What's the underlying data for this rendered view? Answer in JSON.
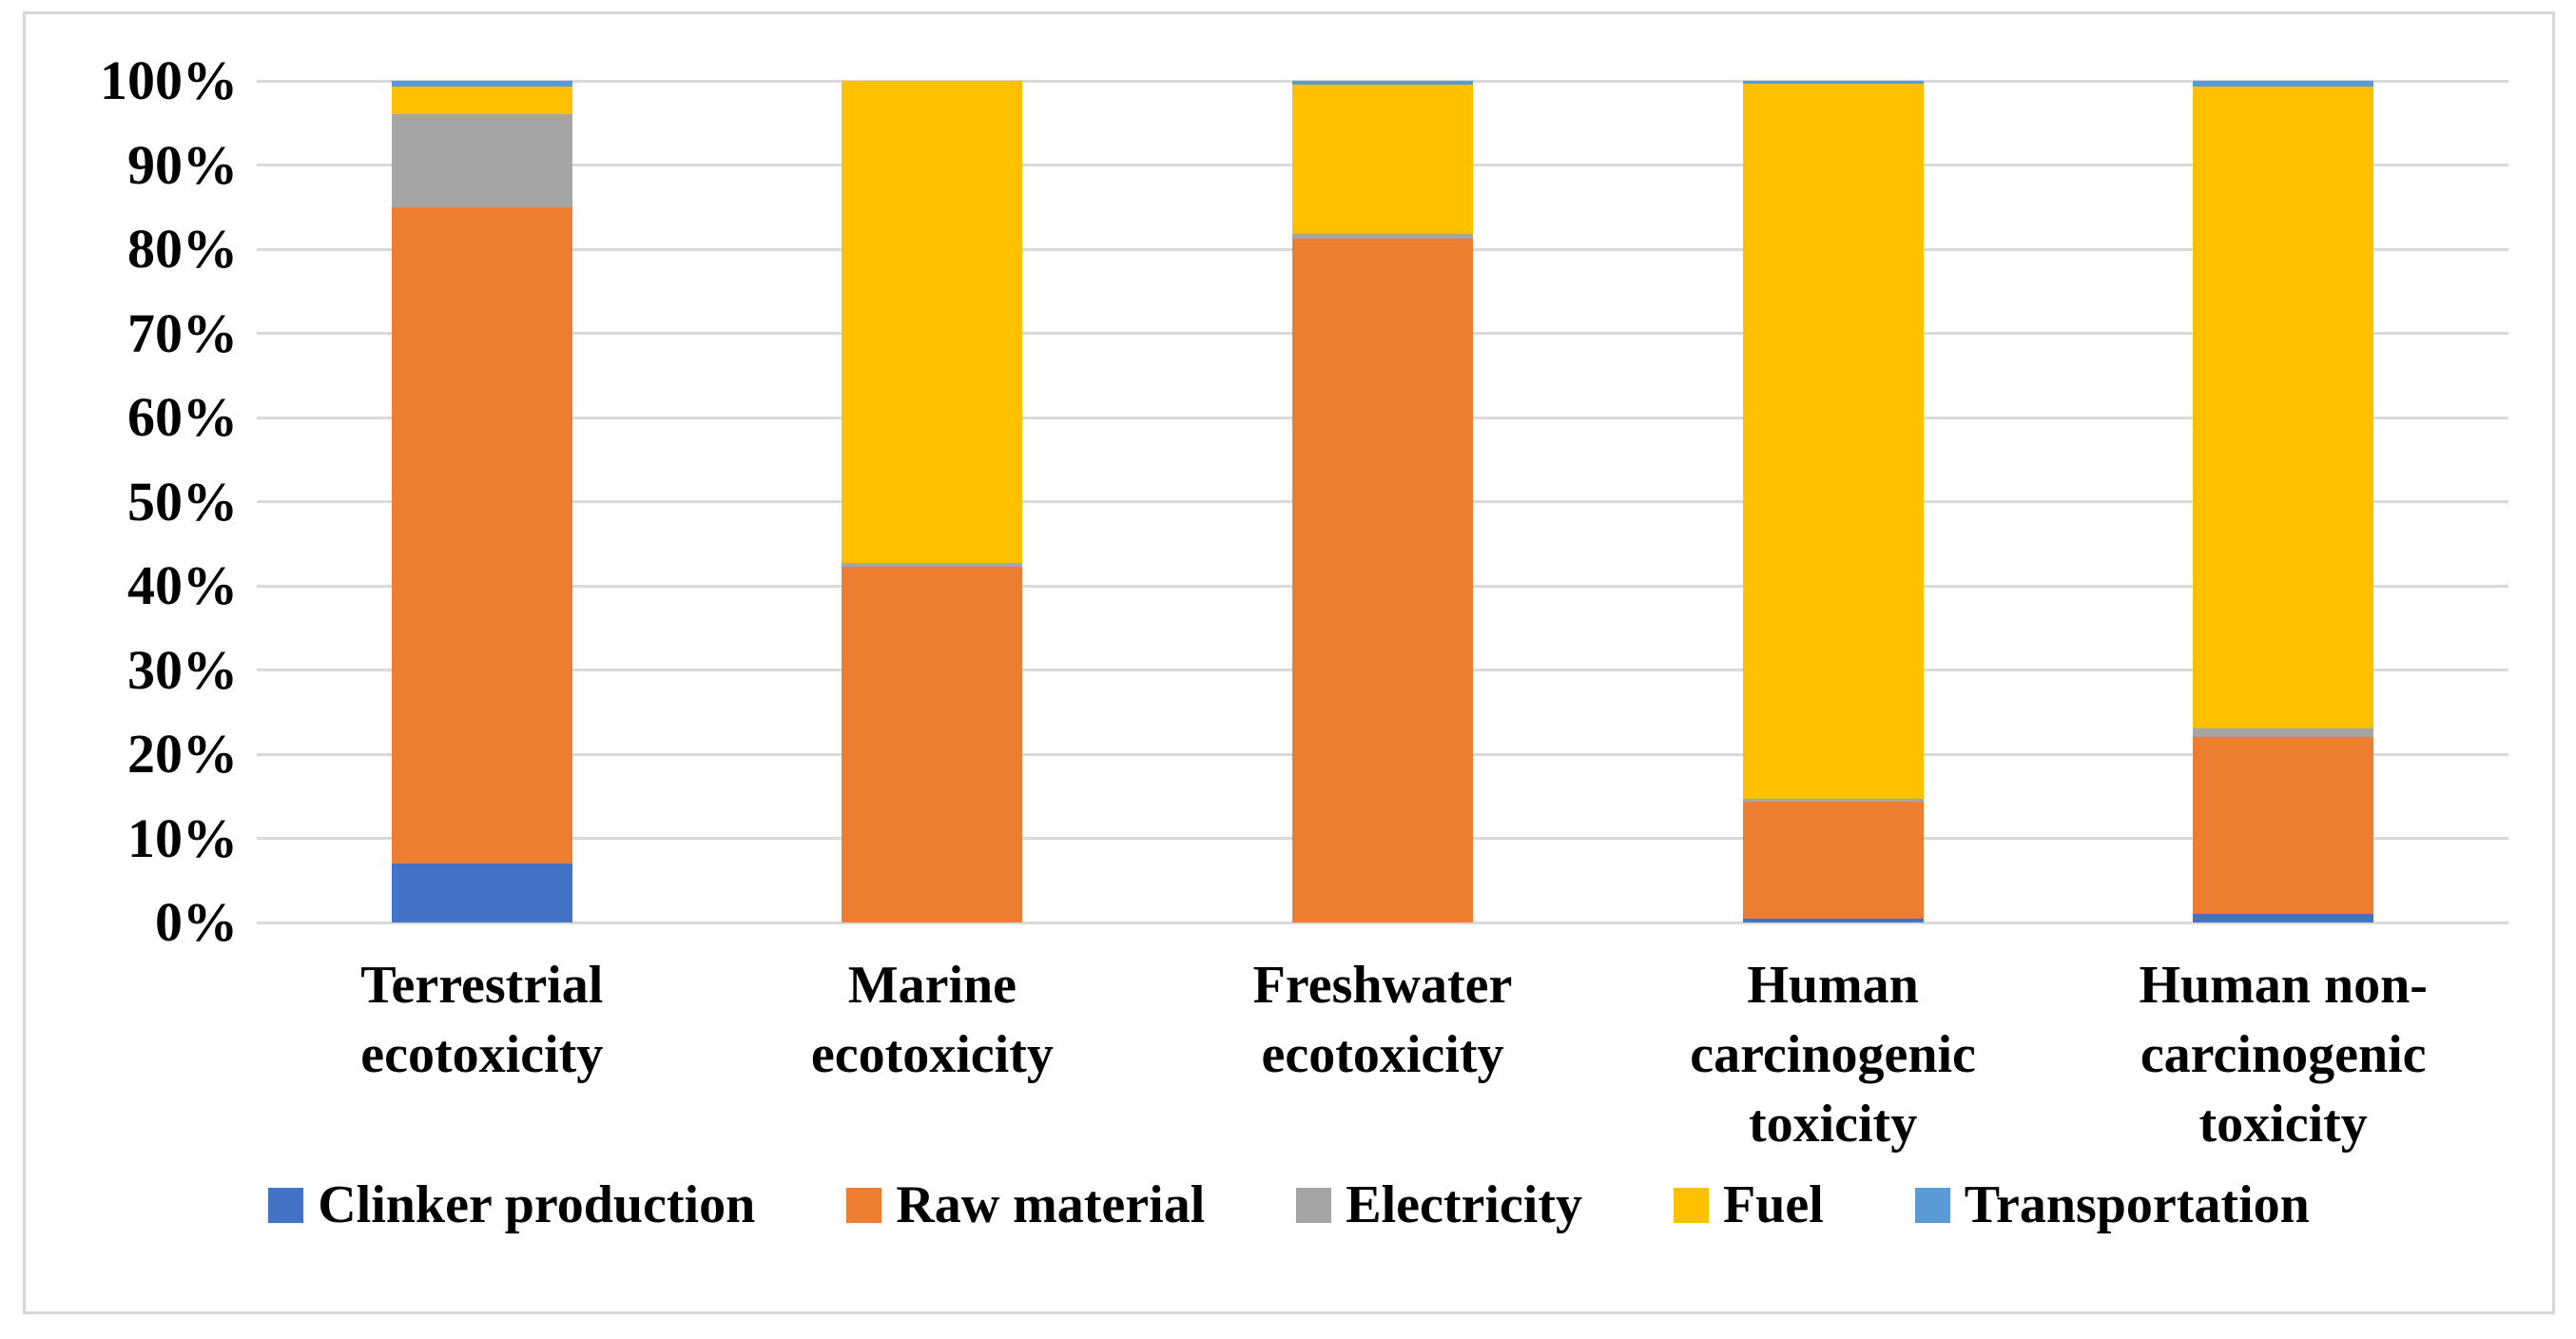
{
  "chart_data": {
    "type": "bar",
    "stacked": true,
    "units": "percent",
    "title": "",
    "xlabel": "",
    "ylabel": "",
    "grid": true,
    "legend_position": "bottom",
    "y_axis": {
      "min": 0,
      "max": 100,
      "tick_step": 10,
      "tick_labels": [
        "0%",
        "10%",
        "20%",
        "30%",
        "40%",
        "50%",
        "60%",
        "70%",
        "80%",
        "90%",
        "100%"
      ]
    },
    "categories": [
      "Terrestrial ecotoxicity",
      "Marine ecotoxicity",
      "Freshwater ecotoxicity",
      "Human carcinogenic toxicity",
      "Human non-carcinogenic toxicity"
    ],
    "category_label_lines": [
      [
        "Terrestrial",
        "ecotoxicity"
      ],
      [
        "Marine",
        "ecotoxicity"
      ],
      [
        "Freshwater",
        "ecotoxicity"
      ],
      [
        "Human",
        "carcinogenic",
        "toxicity"
      ],
      [
        "Human non-",
        "carcinogenic",
        "toxicity"
      ]
    ],
    "series": [
      {
        "name": "Clinker production",
        "color": "#4472C4",
        "values": [
          7.0,
          0.0,
          0.0,
          0.5,
          1.0
        ]
      },
      {
        "name": "Raw material",
        "color": "#ED7D31",
        "values": [
          78.0,
          42.3,
          81.3,
          13.9,
          21.0
        ]
      },
      {
        "name": "Electricity",
        "color": "#A5A5A5",
        "values": [
          11.0,
          0.4,
          0.5,
          0.3,
          1.0
        ]
      },
      {
        "name": "Fuel",
        "color": "#FFC000",
        "values": [
          3.3,
          57.3,
          17.7,
          85.0,
          76.3
        ]
      },
      {
        "name": "Transportation",
        "color": "#5B9BD5",
        "values": [
          0.7,
          0.0,
          0.5,
          0.3,
          0.7
        ]
      }
    ],
    "style": {
      "gridline_color": "#d9d9d9",
      "frame_border_color": "#d6d6d6",
      "text_color": "#000000",
      "background_color": "#ffffff"
    }
  }
}
